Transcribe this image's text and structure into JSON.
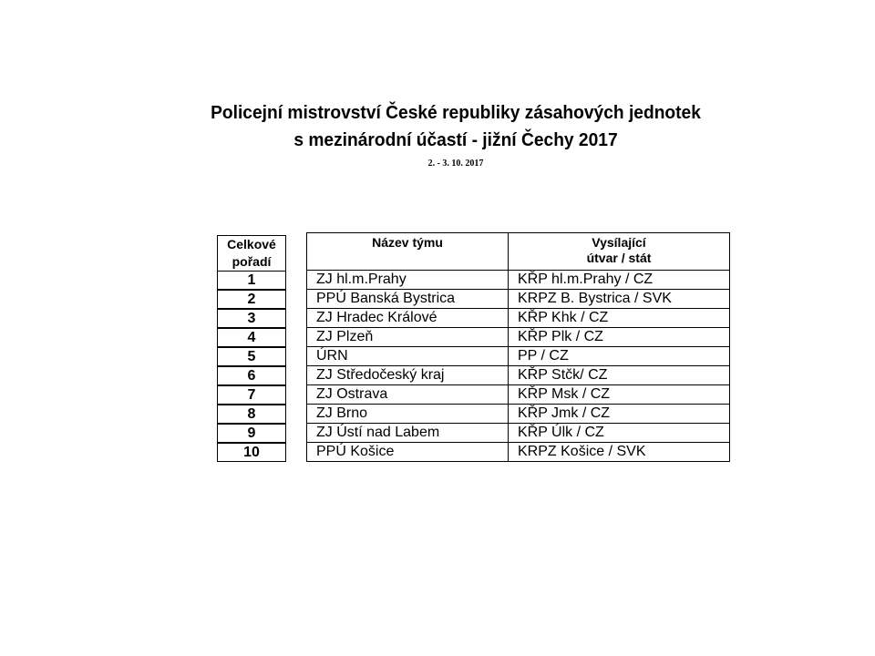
{
  "title_line1": "Policejní mistrovství České republiky zásahových jednotek",
  "title_line2": "s mezinárodní účastí - jižní Čechy 2017",
  "date": "2. - 3. 10. 2017",
  "rank_header": [
    "Celkové",
    "pořadí"
  ],
  "columns": {
    "team": "Název týmu",
    "unit": [
      "Vysílající",
      "útvar / stát"
    ]
  },
  "rows": [
    {
      "rank": "1",
      "team": "ZJ hl.m.Prahy",
      "unit": "KŘP hl.m.Prahy / CZ"
    },
    {
      "rank": "2",
      "team": "PPÚ Banská Bystrica",
      "unit": "KRPZ B. Bystrica / SVK"
    },
    {
      "rank": "3",
      "team": "ZJ Hradec Králové",
      "unit": "KŘP Khk / CZ"
    },
    {
      "rank": "4",
      "team": "ZJ Plzeň",
      "unit": "KŘP Plk / CZ"
    },
    {
      "rank": "5",
      "team": "ÚRN",
      "unit": "PP / CZ"
    },
    {
      "rank": "6",
      "team": "ZJ Středočeský kraj",
      "unit": "KŘP Stčk/ CZ"
    },
    {
      "rank": "7",
      "team": "ZJ Ostrava",
      "unit": "KŘP Msk / CZ"
    },
    {
      "rank": "8",
      "team": "ZJ Brno",
      "unit": "KŘP Jmk / CZ"
    },
    {
      "rank": "9",
      "team": "ZJ Ústí nad Labem",
      "unit": "KŘP Úlk / CZ"
    },
    {
      "rank": "10",
      "team": "PPÚ Košice",
      "unit": "KRPZ Košice / SVK"
    }
  ]
}
